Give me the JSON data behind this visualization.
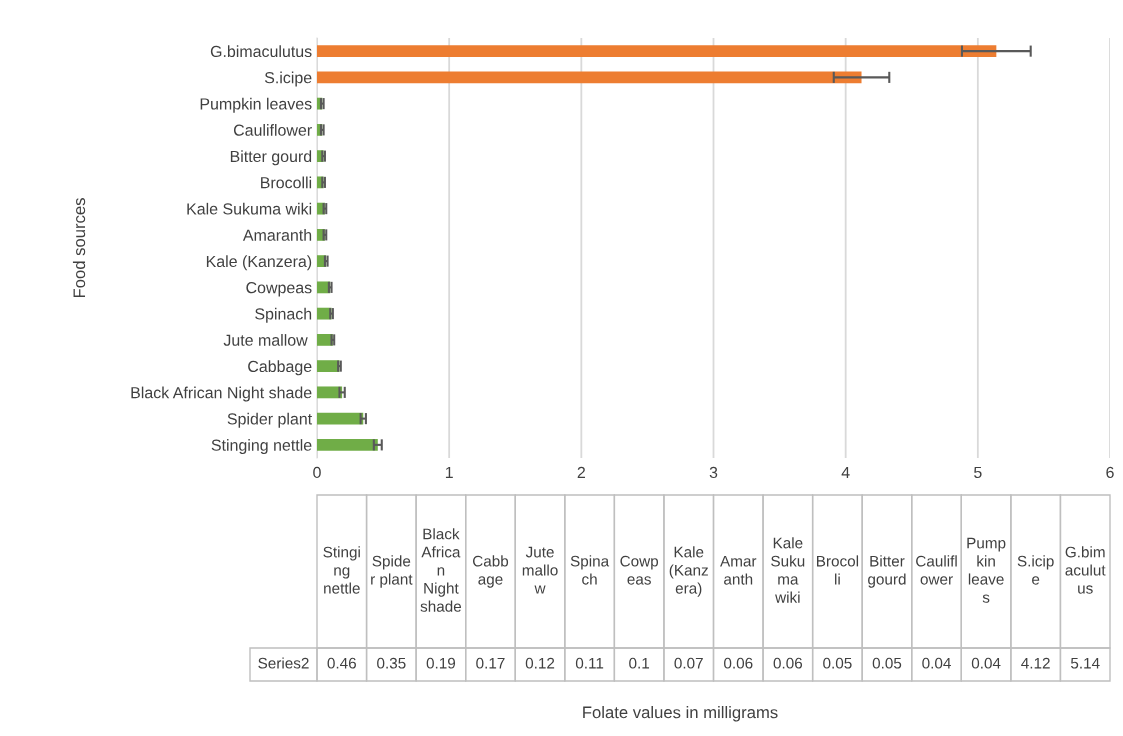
{
  "chart_data": [
    {
      "type": "bar",
      "orientation": "horizontal",
      "ylabel": "Food sources",
      "categories": [
        "G.bimaculutus",
        "S.icipe",
        "Pumpkin leaves",
        "Cauliflower",
        "Bitter gourd",
        "Brocolli",
        "Kale Sukuma wiki",
        "Amaranth",
        "Kale (Kanzera)",
        "Cowpeas",
        "Spinach",
        "Jute mallow ",
        "Cabbage",
        "Black African Night shade",
        "Spider plant",
        "Stinging nettle"
      ],
      "series": [
        {
          "values": [
            5.14,
            4.12,
            0.04,
            0.04,
            0.05,
            0.05,
            0.06,
            0.06,
            0.07,
            0.1,
            0.11,
            0.12,
            0.17,
            0.19,
            0.35,
            0.46
          ],
          "colors": [
            "#ed7d31",
            "#ed7d31",
            "#70ad47",
            "#70ad47",
            "#70ad47",
            "#70ad47",
            "#70ad47",
            "#70ad47",
            "#70ad47",
            "#70ad47",
            "#70ad47",
            "#70ad47",
            "#70ad47",
            "#70ad47",
            "#70ad47",
            "#70ad47"
          ],
          "errors": [
            0.26,
            0.21,
            0.01,
            0.01,
            0.01,
            0.01,
            0.01,
            0.01,
            0.01,
            0.01,
            0.01,
            0.01,
            0.01,
            0.02,
            0.02,
            0.03
          ]
        }
      ],
      "xlim": [
        0,
        6
      ],
      "xticks": [
        0,
        1,
        2,
        3,
        4,
        5,
        6
      ],
      "grid": "x",
      "legend": false
    },
    {
      "type": "other",
      "xlabel": "Folate values in milligrams",
      "categories": [
        "Stinging nettle",
        "Spider plant",
        "Black African Night shade",
        "Cabbage",
        "Jute mallow",
        "Spinach",
        "Cowpeas",
        "Kale (Kanzera)",
        "Amaranth",
        "Kale Sukuma wiki",
        "Brocolli",
        "Bitter gourd",
        "Cauliflower",
        "Pumpkin leaves",
        "S.icipe",
        "G.bimaculutus"
      ],
      "series": [
        {
          "name": "Series2",
          "values": [
            0.46,
            0.35,
            0.19,
            0.17,
            0.12,
            0.11,
            0.1,
            0.07,
            0.06,
            0.06,
            0.05,
            0.05,
            0.04,
            0.04,
            4.12,
            5.14
          ]
        }
      ],
      "data_labels": true
    }
  ]
}
